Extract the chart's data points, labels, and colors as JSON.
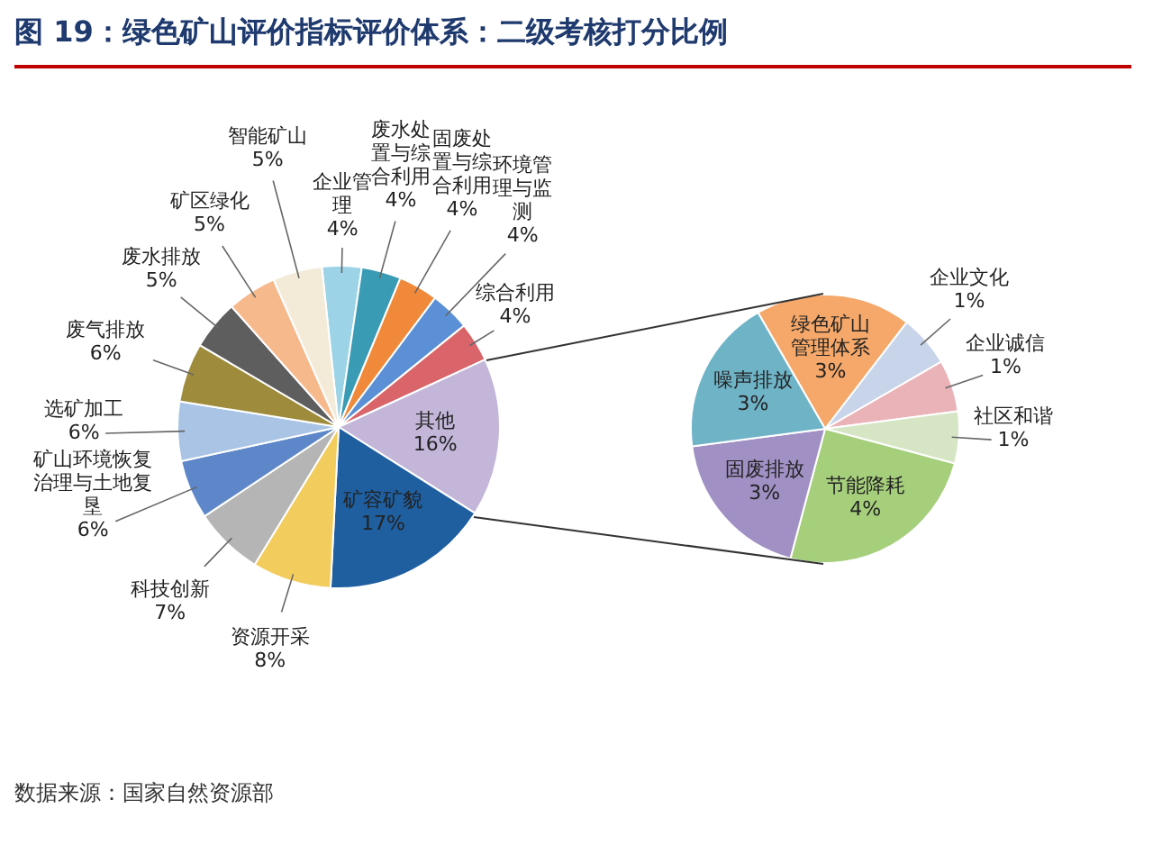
{
  "chart_data": [
    {
      "type": "pie",
      "title": "图 19：绿色矿山评价指标评价体系：二级考核打分比例",
      "annotations": [
        "数据来源：国家自然资源部"
      ],
      "categories": [
        "企业管理",
        "废水处置与综合利用",
        "固废处置与综合利用",
        "环境管理与监测",
        "综合利用",
        "其他",
        "矿容矿貌",
        "资源开采",
        "科技创新",
        "矿山环境恢复治理与土地复垦",
        "选矿加工",
        "废气排放",
        "废水排放",
        "矿区绿化",
        "智能矿山"
      ],
      "values": [
        4,
        4,
        4,
        4,
        4,
        16,
        17,
        8,
        7,
        6,
        6,
        6,
        5,
        5,
        5
      ],
      "value_labels": [
        "4%",
        "4%",
        "4%",
        "4%",
        "4%",
        "16%",
        "17%",
        "8%",
        "7%",
        "6%",
        "6%",
        "6%",
        "5%",
        "5%",
        "5%"
      ],
      "colors": [
        "#9dd3e6",
        "#3a9bb5",
        "#f08a3a",
        "#5b8fd6",
        "#d9656a",
        "#c3b6d9",
        "#1f5fa0",
        "#f2cc5c",
        "#b5b5b5",
        "#5d87c9",
        "#a9c4e4",
        "#9e8c3c",
        "#5e5e5e",
        "#f6b98c",
        "#f3ead8"
      ],
      "legend": false
    },
    {
      "type": "pie",
      "categories": [
        "绿色矿山管理体系",
        "企业文化",
        "企业诚信",
        "社区和谐",
        "节能降耗",
        "固废排放",
        "噪声排放"
      ],
      "values": [
        3,
        1,
        1,
        1,
        4,
        3,
        3
      ],
      "value_labels": [
        "3%",
        "1%",
        "1%",
        "1%",
        "4%",
        "3%",
        "3%"
      ],
      "colors": [
        "#f5a86a",
        "#c8d4ea",
        "#eab3b8",
        "#d6e6c4",
        "#a6cf7c",
        "#a190c4",
        "#6fb3c7"
      ],
      "legend": false
    }
  ]
}
